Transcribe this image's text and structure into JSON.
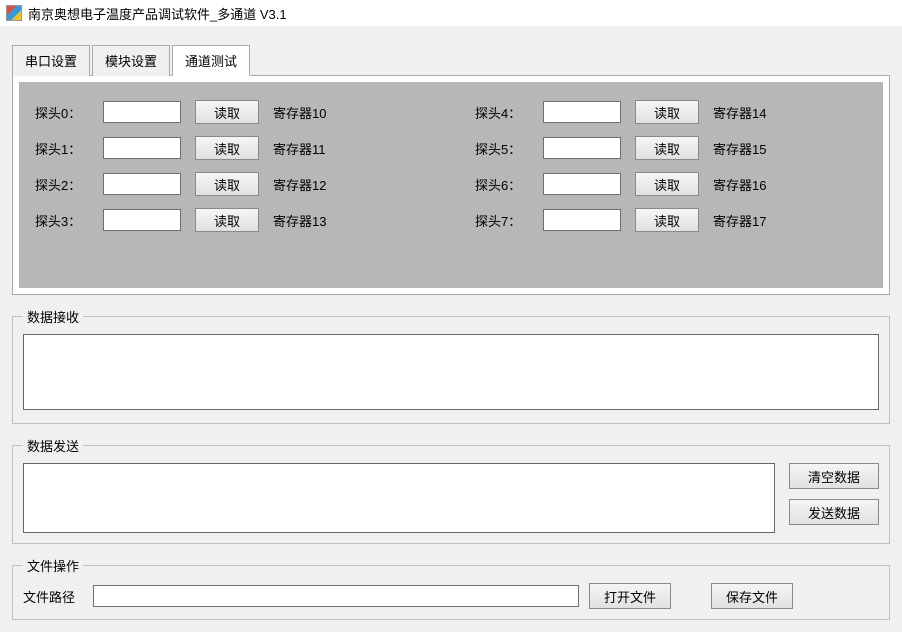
{
  "window": {
    "title": "南京奥想电子温度产品调试软件_多通道  V3.1"
  },
  "tabs": [
    {
      "label": "串口设置",
      "active": false
    },
    {
      "label": "模块设置",
      "active": false
    },
    {
      "label": "通道测试",
      "active": true
    }
  ],
  "probes": {
    "read_btn_label": "读取",
    "left": [
      {
        "label": "探头0：",
        "value": "",
        "register": "寄存器10"
      },
      {
        "label": "探头1：",
        "value": "",
        "register": "寄存器11"
      },
      {
        "label": "探头2：",
        "value": "",
        "register": "寄存器12"
      },
      {
        "label": "探头3：",
        "value": "",
        "register": "寄存器13"
      }
    ],
    "right": [
      {
        "label": "探头4：",
        "value": "",
        "register": "寄存器14"
      },
      {
        "label": "探头5：",
        "value": "",
        "register": "寄存器15"
      },
      {
        "label": "探头6：",
        "value": "",
        "register": "寄存器16"
      },
      {
        "label": "探头7：",
        "value": "",
        "register": "寄存器17"
      }
    ]
  },
  "receive": {
    "legend": "数据接收",
    "value": ""
  },
  "send": {
    "legend": "数据发送",
    "value": "",
    "clear_btn": "清空数据",
    "send_btn": "发送数据"
  },
  "file": {
    "legend": "文件操作",
    "path_label": "文件路径",
    "path_value": "",
    "open_btn": "打开文件",
    "save_btn": "保存文件"
  },
  "colors": {
    "window_bg": "#f0f0f0",
    "probe_area_bg": "#b7b7b7",
    "border": "#aaaaaa",
    "input_border": "#707070"
  }
}
